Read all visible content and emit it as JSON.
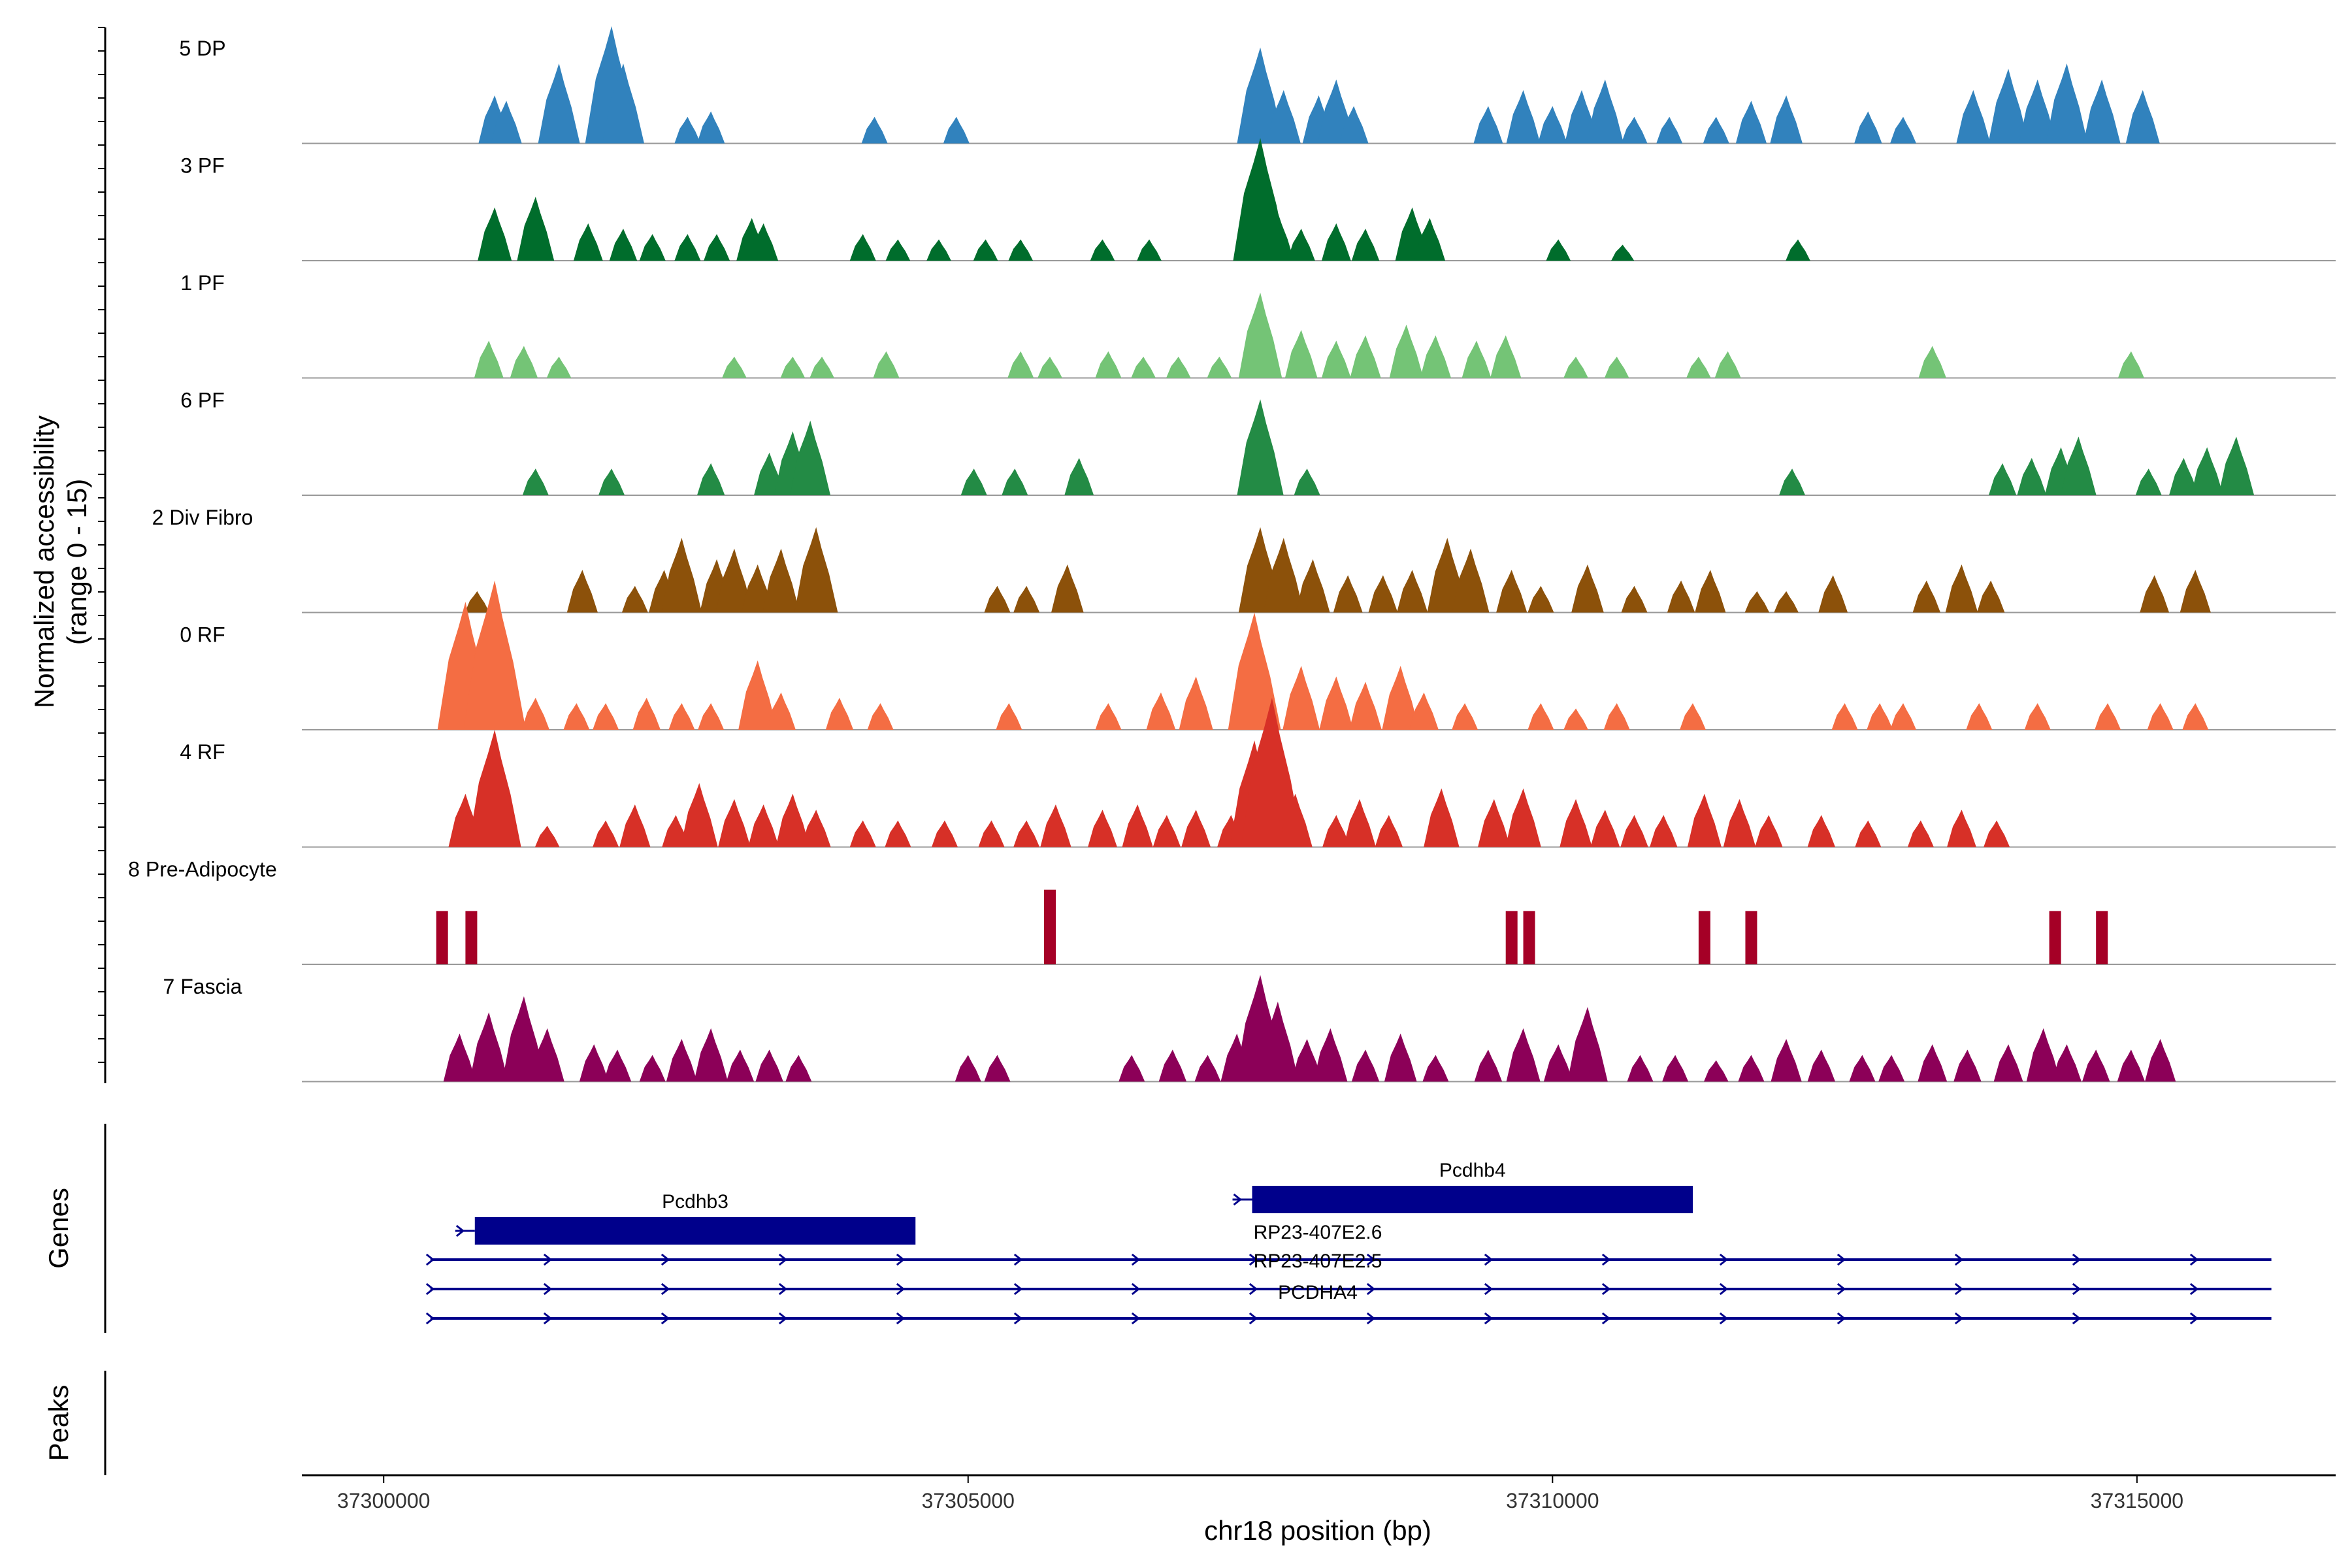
{
  "chart_data": {
    "type": "area",
    "title": "",
    "xlabel": "chr18 position (bp)",
    "ylabel_line1": "Normalized accessibility",
    "ylabel_line2": "(range 0 - 15)",
    "xlim": [
      37299300,
      37316700
    ],
    "ylim": [
      0,
      15
    ],
    "x_ticks": [
      37300000,
      37305000,
      37310000,
      37315000
    ],
    "x_tick_labels": [
      "37300000",
      "37305000",
      "37310000",
      "37315000"
    ],
    "series": [
      {
        "name": "5 DP",
        "color": "#3182bd",
        "peaks": [
          [
            37300950,
            9
          ],
          [
            37301050,
            8
          ],
          [
            37301500,
            15
          ],
          [
            37301950,
            22
          ],
          [
            37302050,
            15
          ],
          [
            37302600,
            5
          ],
          [
            37302800,
            6
          ],
          [
            37304200,
            5
          ],
          [
            37304900,
            5
          ],
          [
            37307500,
            18
          ],
          [
            37307700,
            10
          ],
          [
            37308000,
            9
          ],
          [
            37308150,
            12
          ],
          [
            37308300,
            7
          ],
          [
            37309450,
            7
          ],
          [
            37309750,
            10
          ],
          [
            37310000,
            7
          ],
          [
            37310250,
            10
          ],
          [
            37310450,
            12
          ],
          [
            37310700,
            5
          ],
          [
            37311000,
            5
          ],
          [
            37311400,
            5
          ],
          [
            37311700,
            8
          ],
          [
            37312000,
            9
          ],
          [
            37312700,
            6
          ],
          [
            37313000,
            5
          ],
          [
            37313600,
            10
          ],
          [
            37313900,
            14
          ],
          [
            37314150,
            12
          ],
          [
            37314400,
            15
          ],
          [
            37314700,
            12
          ],
          [
            37315050,
            10
          ]
        ]
      },
      {
        "name": "3 PF",
        "color": "#006d2c",
        "peaks": [
          [
            37300950,
            10
          ],
          [
            37301300,
            12
          ],
          [
            37301750,
            7
          ],
          [
            37302050,
            6
          ],
          [
            37302300,
            5
          ],
          [
            37302600,
            5
          ],
          [
            37302850,
            5
          ],
          [
            37303150,
            8
          ],
          [
            37303250,
            7
          ],
          [
            37304100,
            5
          ],
          [
            37304400,
            4
          ],
          [
            37304750,
            4
          ],
          [
            37305150,
            4
          ],
          [
            37305450,
            4
          ],
          [
            37306150,
            4
          ],
          [
            37306550,
            4
          ],
          [
            37307500,
            23
          ],
          [
            37307650,
            9
          ],
          [
            37307850,
            6
          ],
          [
            37308150,
            7
          ],
          [
            37308400,
            6
          ],
          [
            37308800,
            10
          ],
          [
            37308950,
            8
          ],
          [
            37310050,
            4
          ],
          [
            37310600,
            3
          ],
          [
            37312100,
            4
          ]
        ]
      },
      {
        "name": "1 PF",
        "color": "#74c476",
        "peaks": [
          [
            37300900,
            7
          ],
          [
            37301200,
            6
          ],
          [
            37301500,
            4
          ],
          [
            37303000,
            4
          ],
          [
            37303500,
            4
          ],
          [
            37303750,
            4
          ],
          [
            37304300,
            5
          ],
          [
            37305450,
            5
          ],
          [
            37305700,
            4
          ],
          [
            37306200,
            5
          ],
          [
            37306500,
            4
          ],
          [
            37306800,
            4
          ],
          [
            37307150,
            4
          ],
          [
            37307500,
            16
          ],
          [
            37307850,
            9
          ],
          [
            37308150,
            7
          ],
          [
            37308400,
            8
          ],
          [
            37308750,
            10
          ],
          [
            37309000,
            8
          ],
          [
            37309350,
            7
          ],
          [
            37309600,
            8
          ],
          [
            37310200,
            4
          ],
          [
            37310550,
            4
          ],
          [
            37311250,
            4
          ],
          [
            37311500,
            5
          ],
          [
            37313250,
            6
          ],
          [
            37314950,
            5
          ]
        ]
      },
      {
        "name": "6 PF",
        "color": "#238b45",
        "peaks": [
          [
            37301300,
            5
          ],
          [
            37301950,
            5
          ],
          [
            37302800,
            6
          ],
          [
            37303300,
            8
          ],
          [
            37303500,
            12
          ],
          [
            37303650,
            14
          ],
          [
            37305050,
            5
          ],
          [
            37305400,
            5
          ],
          [
            37305950,
            7
          ],
          [
            37307500,
            18
          ],
          [
            37307900,
            5
          ],
          [
            37312050,
            5
          ],
          [
            37313850,
            6
          ],
          [
            37314100,
            7
          ],
          [
            37314350,
            9
          ],
          [
            37314500,
            11
          ],
          [
            37315100,
            5
          ],
          [
            37315400,
            7
          ],
          [
            37315600,
            9
          ],
          [
            37315850,
            11
          ]
        ]
      },
      {
        "name": "2 Div Fibro",
        "color": "#8c510a",
        "peaks": [
          [
            37300800,
            4
          ],
          [
            37301700,
            8
          ],
          [
            37302150,
            5
          ],
          [
            37302400,
            8
          ],
          [
            37302550,
            14
          ],
          [
            37302850,
            10
          ],
          [
            37303000,
            12
          ],
          [
            37303200,
            9
          ],
          [
            37303400,
            12
          ],
          [
            37303700,
            16
          ],
          [
            37305250,
            5
          ],
          [
            37305500,
            5
          ],
          [
            37305850,
            9
          ],
          [
            37307500,
            16
          ],
          [
            37307700,
            14
          ],
          [
            37307950,
            10
          ],
          [
            37308250,
            7
          ],
          [
            37308550,
            7
          ],
          [
            37308800,
            8
          ],
          [
            37309100,
            14
          ],
          [
            37309300,
            12
          ],
          [
            37309650,
            8
          ],
          [
            37309900,
            5
          ],
          [
            37310300,
            9
          ],
          [
            37310700,
            5
          ],
          [
            37311100,
            6
          ],
          [
            37311350,
            8
          ],
          [
            37311750,
            4
          ],
          [
            37312000,
            4
          ],
          [
            37312400,
            7
          ],
          [
            37313200,
            6
          ],
          [
            37313500,
            9
          ],
          [
            37313750,
            6
          ],
          [
            37315150,
            7
          ],
          [
            37315500,
            8
          ]
        ]
      },
      {
        "name": "0 RF",
        "color": "#f46d43",
        "peaks": [
          [
            37300700,
            24
          ],
          [
            37300950,
            28
          ],
          [
            37301300,
            6
          ],
          [
            37301650,
            5
          ],
          [
            37301900,
            5
          ],
          [
            37302250,
            6
          ],
          [
            37302550,
            5
          ],
          [
            37302800,
            5
          ],
          [
            37303200,
            13
          ],
          [
            37303400,
            7
          ],
          [
            37303900,
            6
          ],
          [
            37304250,
            5
          ],
          [
            37305350,
            5
          ],
          [
            37306200,
            5
          ],
          [
            37306650,
            7
          ],
          [
            37306950,
            10
          ],
          [
            37307450,
            22
          ],
          [
            37307850,
            12
          ],
          [
            37308150,
            10
          ],
          [
            37308400,
            9
          ],
          [
            37308700,
            12
          ],
          [
            37308900,
            7
          ],
          [
            37309250,
            5
          ],
          [
            37309900,
            5
          ],
          [
            37310200,
            4
          ],
          [
            37310550,
            5
          ],
          [
            37311200,
            5
          ],
          [
            37312500,
            5
          ],
          [
            37312800,
            5
          ],
          [
            37313000,
            5
          ],
          [
            37313650,
            5
          ],
          [
            37314150,
            5
          ],
          [
            37314750,
            5
          ],
          [
            37315200,
            5
          ],
          [
            37315500,
            5
          ]
        ]
      },
      {
        "name": "4 RF",
        "color": "#d73027",
        "peaks": [
          [
            37300700,
            10
          ],
          [
            37300950,
            22
          ],
          [
            37301400,
            4
          ],
          [
            37301900,
            5
          ],
          [
            37302150,
            8
          ],
          [
            37302500,
            6
          ],
          [
            37302700,
            12
          ],
          [
            37303000,
            9
          ],
          [
            37303250,
            8
          ],
          [
            37303500,
            10
          ],
          [
            37303700,
            7
          ],
          [
            37304100,
            5
          ],
          [
            37304400,
            5
          ],
          [
            37304800,
            5
          ],
          [
            37305200,
            5
          ],
          [
            37305500,
            5
          ],
          [
            37305750,
            8
          ],
          [
            37306150,
            7
          ],
          [
            37306450,
            8
          ],
          [
            37306700,
            6
          ],
          [
            37306950,
            7
          ],
          [
            37307250,
            6
          ],
          [
            37307450,
            20
          ],
          [
            37307600,
            28
          ],
          [
            37307800,
            10
          ],
          [
            37308150,
            6
          ],
          [
            37308350,
            9
          ],
          [
            37308600,
            6
          ],
          [
            37309050,
            11
          ],
          [
            37309500,
            9
          ],
          [
            37309750,
            11
          ],
          [
            37310200,
            9
          ],
          [
            37310450,
            7
          ],
          [
            37310700,
            6
          ],
          [
            37310950,
            6
          ],
          [
            37311300,
            10
          ],
          [
            37311600,
            9
          ],
          [
            37311850,
            6
          ],
          [
            37312300,
            6
          ],
          [
            37312700,
            5
          ],
          [
            37313150,
            5
          ],
          [
            37313500,
            7
          ],
          [
            37313800,
            5
          ]
        ]
      },
      {
        "name": "8 Pre-Adipocyte",
        "color": "#a50026",
        "peaks": [
          [
            37300500,
            10
          ],
          [
            37300750,
            10
          ],
          [
            37305700,
            14
          ],
          [
            37309650,
            10
          ],
          [
            37309800,
            10
          ],
          [
            37311300,
            10
          ],
          [
            37311700,
            10
          ],
          [
            37314300,
            10
          ],
          [
            37314700,
            10
          ]
        ]
      },
      {
        "name": "7 Fascia",
        "color": "#8c0058",
        "peaks": [
          [
            37300650,
            9
          ],
          [
            37300900,
            13
          ],
          [
            37301200,
            16
          ],
          [
            37301400,
            10
          ],
          [
            37301800,
            7
          ],
          [
            37302000,
            6
          ],
          [
            37302300,
            5
          ],
          [
            37302550,
            8
          ],
          [
            37302800,
            10
          ],
          [
            37303050,
            6
          ],
          [
            37303300,
            6
          ],
          [
            37303550,
            5
          ],
          [
            37305000,
            5
          ],
          [
            37305250,
            5
          ],
          [
            37306400,
            5
          ],
          [
            37306750,
            6
          ],
          [
            37307050,
            5
          ],
          [
            37307300,
            9
          ],
          [
            37307500,
            20
          ],
          [
            37307650,
            15
          ],
          [
            37307900,
            8
          ],
          [
            37308100,
            10
          ],
          [
            37308400,
            6
          ],
          [
            37308700,
            9
          ],
          [
            37309000,
            5
          ],
          [
            37309450,
            6
          ],
          [
            37309750,
            10
          ],
          [
            37310050,
            7
          ],
          [
            37310300,
            14
          ],
          [
            37310750,
            5
          ],
          [
            37311050,
            5
          ],
          [
            37311400,
            4
          ],
          [
            37311700,
            5
          ],
          [
            37312000,
            8
          ],
          [
            37312300,
            6
          ],
          [
            37312650,
            5
          ],
          [
            37312900,
            5
          ],
          [
            37313250,
            7
          ],
          [
            37313550,
            6
          ],
          [
            37313900,
            7
          ],
          [
            37314200,
            10
          ],
          [
            37314400,
            7
          ],
          [
            37314650,
            6
          ],
          [
            37314950,
            6
          ],
          [
            37315200,
            8
          ]
        ]
      }
    ],
    "genes": [
      {
        "name": "Pcdhb3",
        "start": 37300780,
        "end": 37304550,
        "type": "exon_box",
        "strand": "+"
      },
      {
        "name": "Pcdhb4",
        "start": 37307430,
        "end": 37311200,
        "type": "exon_box",
        "strand": "+"
      },
      {
        "name": "RP23-407E2.6",
        "start": 37300400,
        "end": 37316150,
        "type": "line",
        "strand": "+"
      },
      {
        "name": "RP23-407E2.5",
        "start": 37300400,
        "end": 37316150,
        "type": "line",
        "strand": "+"
      },
      {
        "name": "PCDHA4",
        "start": 37300400,
        "end": 37316150,
        "type": "line",
        "strand": "+"
      }
    ],
    "panels": {
      "genes_title": "Genes",
      "peaks_title": "Peaks"
    },
    "colors": {
      "gene": "#00008b",
      "baseline": "#999999",
      "axis": "#000000"
    }
  }
}
